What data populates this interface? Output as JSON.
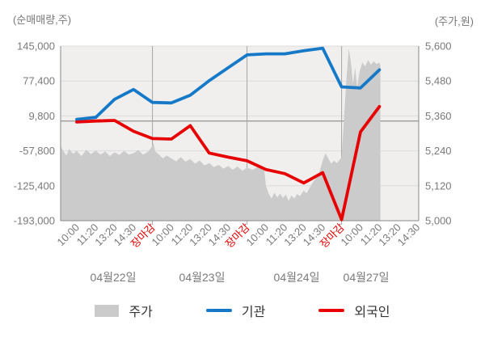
{
  "chart_data": {
    "type": "line",
    "left_axis": {
      "title": "(순매매량,주)",
      "labels": [
        "145,000",
        "77,400",
        "9,800",
        "-57,800",
        "-125,400",
        "-193,000"
      ],
      "values": [
        145000,
        77400,
        9800,
        -57800,
        -125400,
        -193000
      ],
      "max": 145000,
      "min": -193000
    },
    "right_axis": {
      "title": "(주가,원)",
      "labels": [
        "5,600",
        "5,480",
        "5,360",
        "5,240",
        "5,120",
        "5,000"
      ],
      "values": [
        5600,
        5480,
        5360,
        5240,
        5120,
        5000
      ],
      "max": 5600,
      "min": 5000
    },
    "x_ticks": [
      {
        "label": "10:00",
        "highlight": false
      },
      {
        "label": "11:20",
        "highlight": false
      },
      {
        "label": "13:20",
        "highlight": false
      },
      {
        "label": "14:30",
        "highlight": false
      },
      {
        "label": "장마감",
        "highlight": true
      },
      {
        "label": "10:00",
        "highlight": false
      },
      {
        "label": "11:20",
        "highlight": false
      },
      {
        "label": "13:20",
        "highlight": false
      },
      {
        "label": "14:30",
        "highlight": false
      },
      {
        "label": "장마감",
        "highlight": true
      },
      {
        "label": "10:00",
        "highlight": false
      },
      {
        "label": "11:20",
        "highlight": false
      },
      {
        "label": "13:20",
        "highlight": false
      },
      {
        "label": "14:30",
        "highlight": false
      },
      {
        "label": "장마감",
        "highlight": true
      },
      {
        "label": "10:00",
        "highlight": false
      },
      {
        "label": "11:20",
        "highlight": false
      },
      {
        "label": "13:20",
        "highlight": false
      },
      {
        "label": "14:30",
        "highlight": false
      }
    ],
    "day_labels": [
      "04월22일",
      "04월23일",
      "04월24일",
      "04월27일"
    ],
    "boundary_tick_indexes": [
      4,
      9,
      14
    ],
    "highlight_color": "#e60000",
    "series": [
      {
        "name": "주가",
        "type": "area",
        "axis": "price",
        "color": "#cbcbcb",
        "points": [
          [
            -0.85,
            5256
          ],
          [
            -0.7,
            5238
          ],
          [
            -0.55,
            5224
          ],
          [
            -0.4,
            5246
          ],
          [
            -0.2,
            5230
          ],
          [
            0,
            5240
          ],
          [
            0.25,
            5222
          ],
          [
            0.5,
            5244
          ],
          [
            0.75,
            5229
          ],
          [
            1,
            5241
          ],
          [
            1.25,
            5227
          ],
          [
            1.5,
            5238
          ],
          [
            1.75,
            5222
          ],
          [
            2,
            5235
          ],
          [
            2.25,
            5226
          ],
          [
            2.5,
            5240
          ],
          [
            2.75,
            5227
          ],
          [
            3,
            5232
          ],
          [
            3.25,
            5243
          ],
          [
            3.5,
            5227
          ],
          [
            3.75,
            5236
          ],
          [
            3.95,
            5252
          ],
          [
            4.05,
            5268
          ],
          [
            4.15,
            5238
          ],
          [
            4.35,
            5227
          ],
          [
            4.55,
            5214
          ],
          [
            4.75,
            5224
          ],
          [
            5,
            5214
          ],
          [
            5.25,
            5204
          ],
          [
            5.5,
            5219
          ],
          [
            5.75,
            5203
          ],
          [
            6,
            5212
          ],
          [
            6.25,
            5196
          ],
          [
            6.5,
            5207
          ],
          [
            6.75,
            5190
          ],
          [
            7,
            5198
          ],
          [
            7.25,
            5184
          ],
          [
            7.5,
            5192
          ],
          [
            7.75,
            5179
          ],
          [
            8,
            5188
          ],
          [
            8.25,
            5175
          ],
          [
            8.5,
            5186
          ],
          [
            8.75,
            5172
          ],
          [
            9,
            5182
          ],
          [
            9.3,
            5175
          ],
          [
            9.6,
            5186
          ],
          [
            9.9,
            5180
          ],
          [
            10,
            5120
          ],
          [
            10.15,
            5092
          ],
          [
            10.3,
            5076
          ],
          [
            10.45,
            5096
          ],
          [
            10.6,
            5080
          ],
          [
            10.75,
            5094
          ],
          [
            10.9,
            5078
          ],
          [
            11.05,
            5090
          ],
          [
            11.2,
            5068
          ],
          [
            11.35,
            5086
          ],
          [
            11.5,
            5076
          ],
          [
            11.65,
            5092
          ],
          [
            11.8,
            5084
          ],
          [
            12,
            5104
          ],
          [
            12.15,
            5094
          ],
          [
            12.3,
            5112
          ],
          [
            12.5,
            5134
          ],
          [
            12.7,
            5150
          ],
          [
            12.85,
            5172
          ],
          [
            13,
            5206
          ],
          [
            13.15,
            5232
          ],
          [
            13.3,
            5213
          ],
          [
            13.45,
            5196
          ],
          [
            13.6,
            5206
          ],
          [
            13.75,
            5198
          ],
          [
            13.9,
            5210
          ],
          [
            14,
            5216
          ],
          [
            14.1,
            5320
          ],
          [
            14.25,
            5480
          ],
          [
            14.38,
            5592
          ],
          [
            14.5,
            5540
          ],
          [
            14.6,
            5470
          ],
          [
            14.72,
            5525
          ],
          [
            14.82,
            5458
          ],
          [
            14.95,
            5512
          ],
          [
            15.1,
            5544
          ],
          [
            15.25,
            5530
          ],
          [
            15.4,
            5552
          ],
          [
            15.55,
            5536
          ],
          [
            15.7,
            5548
          ],
          [
            15.85,
            5538
          ],
          [
            16,
            5544
          ],
          [
            16.05,
            5535
          ]
        ]
      },
      {
        "name": "기관",
        "type": "line",
        "axis": "volume",
        "color": "#1679c8",
        "values": [
          3000,
          7000,
          42000,
          61000,
          36000,
          35000,
          50000,
          78000,
          103000,
          128000,
          130000,
          130000,
          136000,
          141000,
          66000,
          64000,
          99000
        ]
      },
      {
        "name": "외국인",
        "type": "line",
        "axis": "volume",
        "color": "#e60000",
        "values": [
          -2000,
          0,
          1000,
          -20000,
          -34000,
          -35000,
          -9000,
          -62000,
          -70000,
          -77000,
          -94000,
          -102000,
          -120000,
          -100000,
          -191000,
          -21000,
          28000
        ]
      }
    ]
  },
  "legend": {
    "items": [
      {
        "label": "주가",
        "swatch": "area",
        "color": "#cbcbcb"
      },
      {
        "label": "기관",
        "swatch": "line",
        "color": "#1679c8"
      },
      {
        "label": "외국인",
        "swatch": "line",
        "color": "#e60000"
      }
    ]
  }
}
